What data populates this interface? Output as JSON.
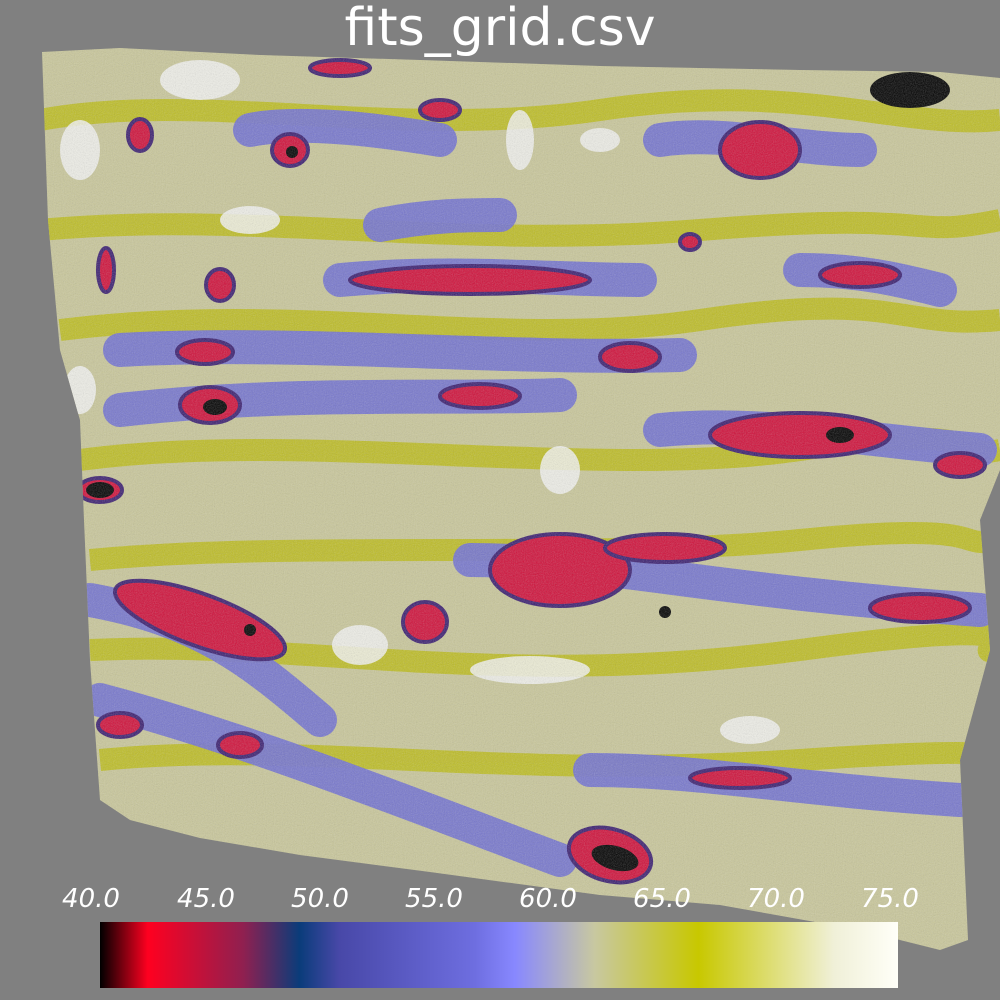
{
  "title": "fits_grid.csv",
  "colorbar": {
    "tick_labels": [
      "40.0",
      "45.0",
      "50.0",
      "55.0",
      "60.0",
      "65.0",
      "70.0",
      "75.0"
    ],
    "min": 40.0,
    "max": 75.0,
    "colors": [
      "#000000",
      "#ff0020",
      "#0a3c7a",
      "#8888ff",
      "#c8c800",
      "#fffff8"
    ]
  },
  "background_color": "#808080"
}
